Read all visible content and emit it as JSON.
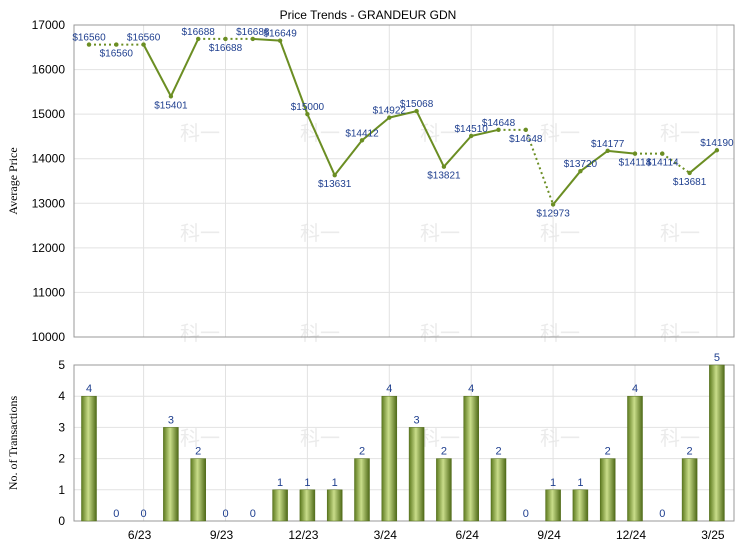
{
  "chart_data": [
    {
      "type": "line",
      "title": "Price Trends - GRANDEUR GDN",
      "ylabel": "Average Price",
      "ylim": [
        10000,
        17000
      ],
      "yticks": [
        "10000",
        "11000",
        "12000",
        "13000",
        "14000",
        "15000",
        "16000",
        "17000"
      ],
      "xticks": [
        "6/23",
        "9/23",
        "12/23",
        "3/24",
        "6/24",
        "9/24",
        "12/24",
        "3/25"
      ],
      "grid": true,
      "series": [
        {
          "values": [
            16560,
            16560,
            16560,
            15401,
            16688,
            16688,
            16688,
            16649,
            15000,
            13631,
            14412,
            14922,
            15068,
            13821,
            14510,
            14648,
            14648,
            12973,
            13720,
            14177,
            14114,
            14114,
            13681,
            14190
          ],
          "labels": [
            "$16560",
            "$16560",
            "$16560",
            "$15401",
            "$16688",
            "$16688",
            "$16688",
            "$16649",
            "$15000",
            "$13631",
            "$14412",
            "$14922",
            "$15068",
            "$13821",
            "$14510",
            "$14648",
            "$14648",
            "$12973",
            "$13720",
            "$14177",
            "$14114",
            "$14114",
            "$13681",
            "$14190"
          ],
          "interpolated": [
            false,
            true,
            false,
            false,
            false,
            true,
            false,
            false,
            false,
            false,
            false,
            false,
            false,
            false,
            false,
            false,
            true,
            false,
            false,
            false,
            false,
            true,
            false,
            false
          ],
          "color": "#6b8e23"
        }
      ]
    },
    {
      "type": "bar",
      "ylabel": "No. of Transactions",
      "ylim": [
        0,
        5
      ],
      "yticks": [
        "0",
        "1",
        "2",
        "3",
        "4",
        "5"
      ],
      "xticks": [
        "6/23",
        "9/23",
        "12/23",
        "3/24",
        "6/24",
        "9/24",
        "12/24",
        "3/25"
      ],
      "grid": true,
      "series": [
        {
          "values": [
            4,
            0,
            0,
            3,
            2,
            0,
            0,
            1,
            1,
            1,
            2,
            4,
            3,
            2,
            4,
            2,
            0,
            1,
            1,
            2,
            4,
            0,
            2,
            5
          ],
          "color": "#6b8e23"
        }
      ]
    }
  ],
  "watermark": "科一"
}
